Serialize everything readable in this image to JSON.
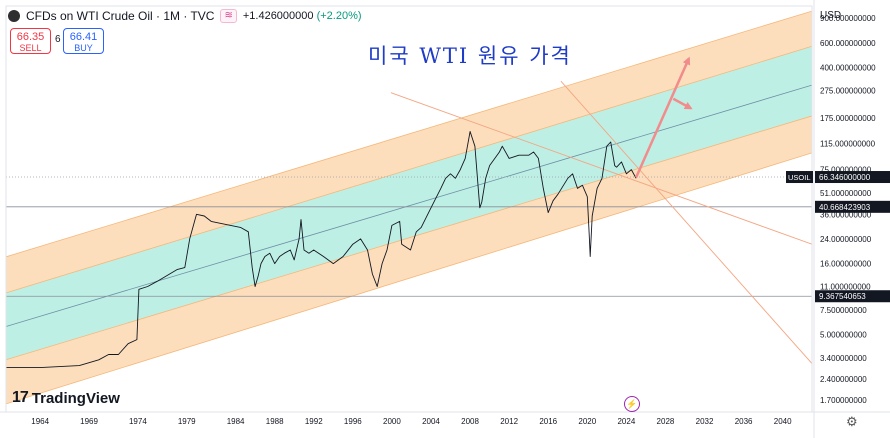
{
  "header": {
    "symbol_title": "CFDs on WTI Crude Oil · 1M · TVC",
    "tag": "≋",
    "change": "+1.426000000",
    "change_pct": "(+2.20%)"
  },
  "trade": {
    "sell_price": "66.35",
    "sell_label": "SELL",
    "spread": "6",
    "buy_price": "66.41",
    "buy_label": "BUY"
  },
  "currency": "USD",
  "title_text": "미국 WTI 원유 가격",
  "logo_text": "TradingView",
  "zone_icon": "lightning-icon",
  "settings_icon": "gear-icon",
  "colors": {
    "price": "#131722",
    "channel_inner": "#b3ece0",
    "channel_outer": "#fcd8b0",
    "trend_line": "#f4a582",
    "forecast_arrow": "#f28c8c",
    "axis_text": "#131722",
    "last_price_badge": "#131722",
    "level_badge": "#131722"
  },
  "chart_data": {
    "type": "line",
    "title": "미국 WTI 원유 가격",
    "xlabel": "",
    "ylabel": "",
    "scale": "log",
    "xlim": [
      1960.5,
      2043
    ],
    "ylim": [
      1.4,
      1100
    ],
    "x_ticks": [
      "1964",
      "1969",
      "1974",
      "1979",
      "1984",
      "1988",
      "1992",
      "1996",
      "2000",
      "2004",
      "2008",
      "2012",
      "2016",
      "2020",
      "2024",
      "2028",
      "2032",
      "2036",
      "2040"
    ],
    "y_ticks": [
      {
        "v": 900,
        "label": "900.000000000"
      },
      {
        "v": 600,
        "label": "600.000000000"
      },
      {
        "v": 400,
        "label": "400.000000000"
      },
      {
        "v": 275,
        "label": "275.000000000"
      },
      {
        "v": 175,
        "label": "175.000000000"
      },
      {
        "v": 115,
        "label": "115.000000000"
      },
      {
        "v": 75,
        "label": "75.000000000"
      },
      {
        "v": 51,
        "label": "51.000000000"
      },
      {
        "v": 36,
        "label": "36.000000000"
      },
      {
        "v": 24,
        "label": "24.000000000"
      },
      {
        "v": 16,
        "label": "16.000000000"
      },
      {
        "v": 11,
        "label": "11.000000000"
      },
      {
        "v": 7.5,
        "label": "7.500000000"
      },
      {
        "v": 5,
        "label": "5.000000000"
      },
      {
        "v": 3.4,
        "label": "3.400000000"
      },
      {
        "v": 2.4,
        "label": "2.400000000"
      },
      {
        "v": 1.7,
        "label": "1.700000000"
      }
    ],
    "price_labels": [
      {
        "v": 66.346,
        "label": "66.346000000",
        "symbol": "USOIL"
      },
      {
        "v": 40.668,
        "label": "40.668423903"
      },
      {
        "v": 9.3675,
        "label": "9.367540653"
      }
    ],
    "horizontal_levels": [
      40.668,
      9.3675
    ],
    "last_value": 66.346,
    "grid": false,
    "series": [
      {
        "name": "USOIL",
        "x": [
          1960.5,
          1964,
          1968,
          1970,
          1971,
          1972,
          1973,
          1973.9,
          1974.1,
          1975,
          1976,
          1978,
          1978.8,
          1979.3,
          1980,
          1980.8,
          1981.5,
          1982.5,
          1983.5,
          1984.5,
          1985.3,
          1985.7,
          1986,
          1986.3,
          1986.6,
          1987,
          1987.5,
          1988,
          1988.5,
          1989,
          1989.6,
          1990,
          1990.5,
          1990.7,
          1991,
          1991.5,
          1992,
          1993,
          1994,
          1995,
          1996,
          1996.8,
          1997.5,
          1998,
          1998.5,
          1999,
          1999.5,
          2000,
          2000.8,
          2001,
          2001.9,
          2002.5,
          2003,
          2004,
          2005,
          2005.5,
          2006,
          2006.5,
          2007,
          2007.5,
          2008,
          2008.5,
          2009,
          2009.2,
          2009.6,
          2010,
          2011,
          2011.3,
          2012,
          2013,
          2014,
          2014.5,
          2015,
          2015.5,
          2016,
          2016.5,
          2017,
          2018,
          2018.5,
          2019,
          2019.5,
          2020,
          2020.2,
          2020.3,
          2020.5,
          2021,
          2021.5,
          2022,
          2022.4,
          2022.8,
          2023,
          2023.5,
          2024,
          2024.5,
          2025
        ],
        "values": [
          2.9,
          2.9,
          3.0,
          3.3,
          3.6,
          3.6,
          4.3,
          4.6,
          10.5,
          11,
          12,
          14.5,
          15,
          24,
          36,
          35,
          32,
          31,
          30,
          29,
          27,
          15,
          11,
          13,
          16,
          18,
          19,
          16,
          18,
          19,
          20,
          17,
          24,
          33,
          20,
          19,
          20,
          18,
          16,
          18,
          22,
          24,
          20,
          13.5,
          11,
          16,
          20,
          30,
          32,
          22,
          20,
          27,
          29,
          40,
          55,
          65,
          70,
          65,
          75,
          90,
          140,
          110,
          40,
          44,
          65,
          80,
          100,
          110,
          90,
          95,
          95,
          100,
          90,
          55,
          37,
          45,
          50,
          65,
          70,
          55,
          58,
          48,
          25,
          18,
          35,
          55,
          65,
          110,
          118,
          80,
          78,
          85,
          70,
          75,
          65
        ]
      }
    ],
    "channel_bands": [
      {
        "name": "outer-top",
        "start": [
          1960.5,
          17.9
        ],
        "end": [
          2043,
          1012
        ]
      },
      {
        "name": "inner-top",
        "start": [
          1960.5,
          9.9
        ],
        "end": [
          2043,
          568
        ]
      },
      {
        "name": "median",
        "start": [
          1960.5,
          5.7
        ],
        "end": [
          2043,
          300
        ]
      },
      {
        "name": "inner-bottom",
        "start": [
          1960.5,
          3.3
        ],
        "end": [
          2043,
          181
        ]
      },
      {
        "name": "outer-bottom",
        "start": [
          1960.5,
          1.6
        ],
        "end": [
          2043,
          98.6
        ]
      }
    ],
    "trend_lines": [
      {
        "start": [
          1999.9,
          265
        ],
        "end": [
          2043,
          22
        ]
      },
      {
        "start": [
          2017.3,
          320
        ],
        "end": [
          2043,
          3.1
        ]
      }
    ],
    "forecast_arrows": [
      {
        "start": [
          2025,
          66
        ],
        "end": [
          2030.4,
          465
        ]
      },
      {
        "start": [
          2028.8,
          240
        ],
        "end": [
          2030.6,
          205
        ]
      }
    ]
  }
}
